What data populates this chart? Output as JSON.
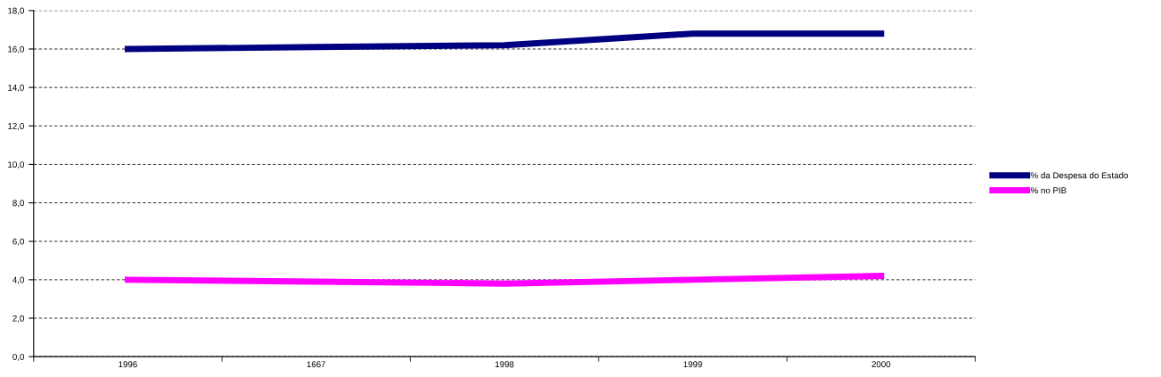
{
  "chart_data": {
    "type": "line",
    "categories": [
      "1996",
      "1667",
      "1998",
      "1999",
      "2000"
    ],
    "series": [
      {
        "name": "% da Despesa do Estado",
        "color": "#000080",
        "values": [
          16.0,
          16.1,
          16.2,
          16.8,
          16.8
        ]
      },
      {
        "name": "% no PIB",
        "color": "#ff00ff",
        "values": [
          4.0,
          3.9,
          3.8,
          4.0,
          4.2
        ]
      }
    ],
    "ylim": [
      0,
      18
    ],
    "yticks": [
      {
        "value": 0,
        "label": "0,0"
      },
      {
        "value": 2,
        "label": "2,0"
      },
      {
        "value": 4,
        "label": "4,0"
      },
      {
        "value": 6,
        "label": "6,0"
      },
      {
        "value": 8,
        "label": "8,0"
      },
      {
        "value": 10,
        "label": "10,0"
      },
      {
        "value": 12,
        "label": "12,0"
      },
      {
        "value": 14,
        "label": "14,0"
      },
      {
        "value": 16,
        "label": "16,0"
      },
      {
        "value": 18,
        "label": "18,0"
      }
    ],
    "grid": "y",
    "legend": "right",
    "marker": "none",
    "line_style": "solid"
  }
}
